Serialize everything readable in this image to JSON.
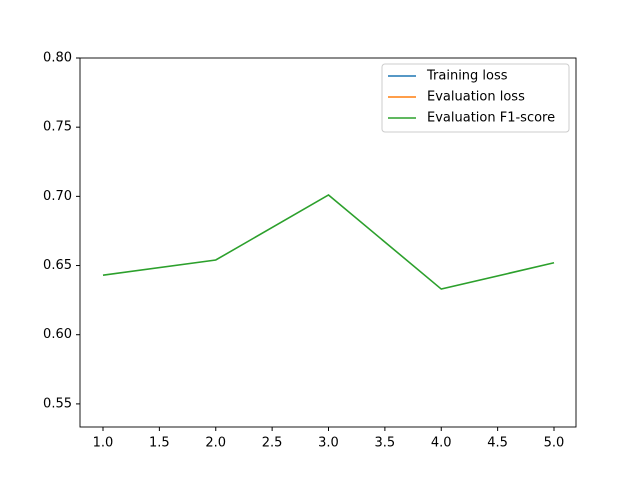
{
  "chart_data": {
    "type": "line",
    "x": [
      1,
      2,
      3,
      4,
      5
    ],
    "series": [
      {
        "name": "Training loss",
        "color": "#1f77b4",
        "values": [
          null,
          null,
          null,
          null,
          null
        ]
      },
      {
        "name": "Evaluation loss",
        "color": "#ff7f0e",
        "values": [
          null,
          null,
          null,
          null,
          null
        ]
      },
      {
        "name": "Evaluation F1-score",
        "color": "#2ca02c",
        "values": [
          0.643,
          0.654,
          0.701,
          0.633,
          0.652
        ]
      }
    ],
    "xlim": [
      0.796,
      5.195
    ],
    "xticks": [
      {
        "value": 1,
        "label": "1.0"
      },
      1.5,
      {
        "value": 2,
        "label": "2.0"
      },
      2.5,
      {
        "value": 3,
        "label": "3.0"
      },
      3.5,
      {
        "value": 4,
        "label": "4.0"
      },
      4.5,
      {
        "value": 5,
        "label": "5.0"
      }
    ],
    "ylim": [
      0.5333,
      0.8
    ],
    "yticks": [
      0.55,
      {
        "value": 0.6,
        "label": "0.60"
      },
      0.65,
      {
        "value": 0.7,
        "label": "0.70"
      },
      0.75,
      {
        "value": 0.8,
        "label": "0.80"
      }
    ],
    "grid": false,
    "legend": "upper right"
  }
}
